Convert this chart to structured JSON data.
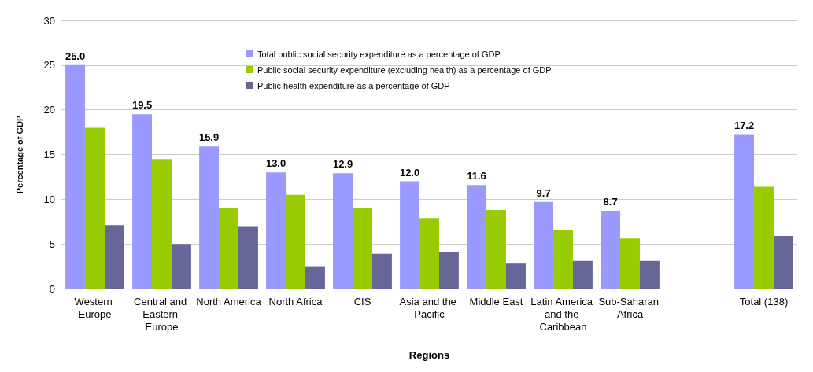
{
  "chart_data": {
    "type": "bar",
    "xlabel": "Regions",
    "ylabel": "Percentage of GDP",
    "categories": [
      "Western Europe",
      "Central and Eastern Europe",
      "North America",
      "North Africa",
      "CIS",
      "Asia and the Pacific",
      "Middle East",
      "Latin America and the Caribbean",
      "Sub-Saharan Africa",
      null,
      "Total (138)"
    ],
    "series": [
      {
        "name": "Total public social security expenditure as a percentage of GDP",
        "color": "#9999ff",
        "values": [
          25.0,
          19.5,
          15.9,
          13.0,
          12.9,
          12.0,
          11.6,
          9.7,
          8.7,
          null,
          17.2
        ],
        "value_labels": [
          "25.0",
          "19.5",
          "15.9",
          "13.0",
          "12.9",
          "12.0",
          "11.6",
          "9.7",
          "8.7",
          null,
          "17.2"
        ]
      },
      {
        "name": "Public social security expenditure (excluding health) as a percentage of GDP",
        "color": "#99cc00",
        "values": [
          18.0,
          14.5,
          9.0,
          10.5,
          9.0,
          7.9,
          8.8,
          6.6,
          5.6,
          null,
          11.4
        ]
      },
      {
        "name": "Public health expenditure as a percentage of GDP",
        "color": "#666699",
        "values": [
          7.1,
          5.0,
          7.0,
          2.5,
          3.9,
          4.1,
          2.8,
          3.1,
          3.1,
          null,
          5.9
        ]
      }
    ],
    "ylim": [
      0,
      30
    ],
    "yticks": [
      0,
      5,
      10,
      15,
      20,
      25,
      30
    ],
    "grid": "y",
    "legend": "top"
  }
}
